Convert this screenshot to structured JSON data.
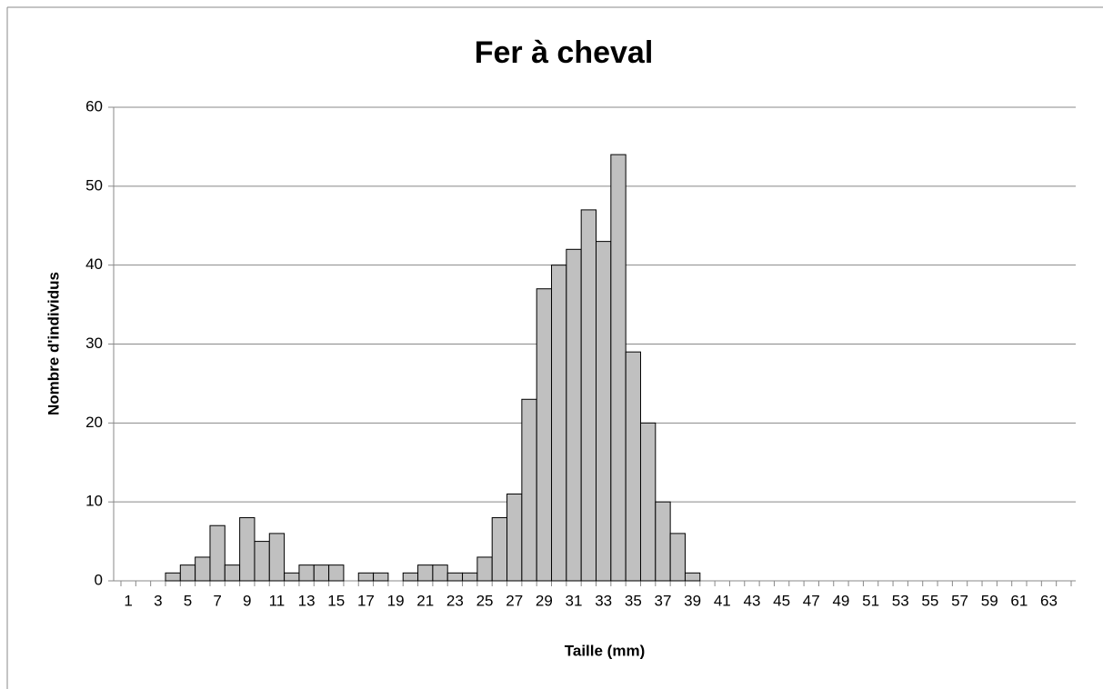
{
  "chart_data": {
    "type": "bar",
    "title": "Fer à cheval",
    "x_label": "Taille (mm)",
    "y_label": "Nombre d'individus",
    "categories": [
      "1",
      null,
      "3",
      null,
      "5",
      null,
      "7",
      null,
      "9",
      null,
      "11",
      null,
      "13",
      null,
      "15",
      null,
      "17",
      null,
      "19",
      null,
      "21",
      null,
      "23",
      null,
      "25",
      null,
      "27",
      null,
      "29",
      null,
      "31",
      null,
      "33",
      null,
      "35",
      null,
      "37",
      null,
      "39",
      null,
      "41",
      null,
      "43",
      null,
      "45",
      null,
      "47",
      null,
      "49",
      null,
      "51",
      null,
      "53",
      null,
      "55",
      null,
      "57",
      null,
      "59",
      null,
      "61",
      null,
      "63",
      null
    ],
    "values": [
      0,
      0,
      0,
      1,
      2,
      3,
      7,
      2,
      8,
      5,
      6,
      1,
      2,
      2,
      2,
      0,
      1,
      1,
      0,
      1,
      2,
      2,
      1,
      1,
      3,
      8,
      11,
      23,
      37,
      40,
      42,
      47,
      43,
      54,
      29,
      20,
      10,
      6,
      1,
      0,
      0,
      0,
      0,
      0,
      0,
      0,
      0,
      0,
      0,
      0,
      0,
      0,
      0,
      0,
      0,
      0,
      0,
      0,
      0,
      0,
      0,
      0,
      0,
      0
    ],
    "color": "#c0c0c0",
    "ylim": [
      0,
      60
    ],
    "yticks": [
      0,
      10,
      20,
      30,
      40,
      50,
      60
    ],
    "grid": true
  }
}
